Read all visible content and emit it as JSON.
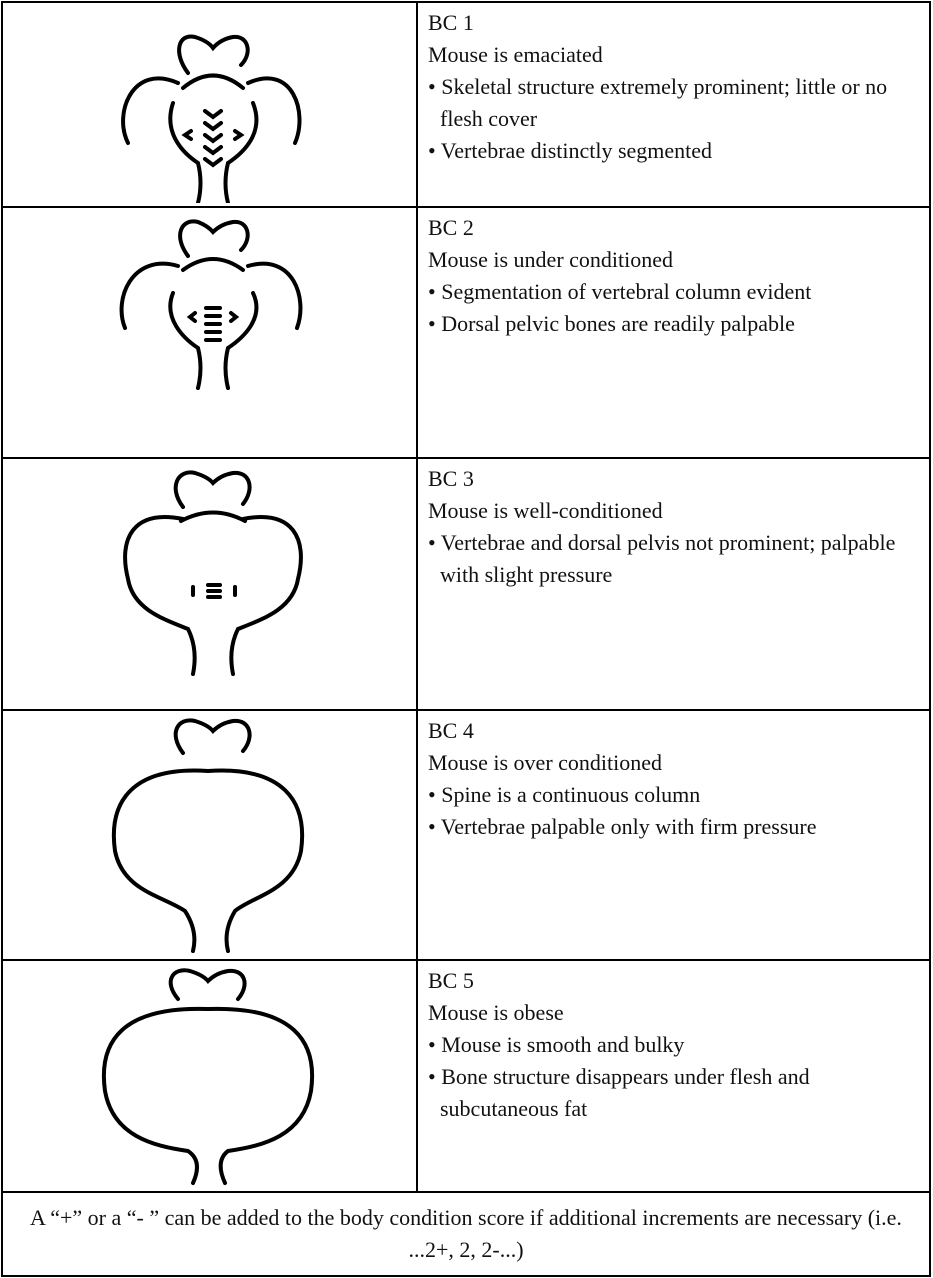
{
  "rows": [
    {
      "label": "BC 1",
      "description": "Mouse is emaciated",
      "bullets": [
        "• Skeletal structure extremely prominent; little or no flesh cover",
        "• Vertebrae distinctly segmented"
      ]
    },
    {
      "label": "BC 2",
      "description": "Mouse is under conditioned",
      "bullets": [
        "• Segmentation of vertebral column evident",
        "• Dorsal pelvic bones are readily palpable"
      ]
    },
    {
      "label": "BC 3",
      "description": "Mouse is well-conditioned",
      "bullets": [
        "• Vertebrae and dorsal pelvis not prominent; palpable with slight pressure"
      ]
    },
    {
      "label": "BC 4",
      "description": "Mouse is over conditioned",
      "bullets": [
        "• Spine is a continuous column",
        "• Vertebrae palpable only with firm pressure"
      ]
    },
    {
      "label": "BC 5",
      "description": "Mouse is obese",
      "bullets": [
        "• Mouse is smooth and bulky",
        "• Bone structure disappears under flesh and subcutaneous fat"
      ]
    }
  ],
  "footnote": "A “+” or a “- ” can be added to the body condition score if additional increments are necessary (i.e. ...2+, 2, 2-...)"
}
